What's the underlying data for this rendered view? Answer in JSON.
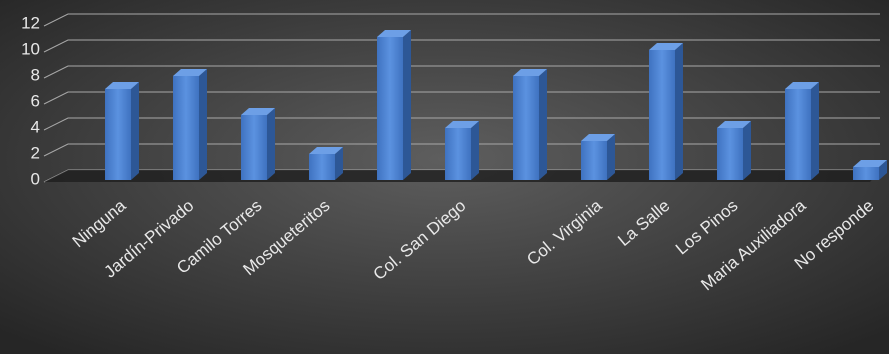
{
  "chart_data": {
    "type": "bar",
    "categories": [
      "Ninguna",
      "Jardín-Privado",
      "Camilo Torres",
      "Mosqueteritos",
      null,
      "Col. San Diego",
      null,
      "Col. Virginia",
      "La Salle",
      "Los Pinos",
      "Maria Auxiliadora",
      "No responde"
    ],
    "values": [
      7,
      8,
      5,
      2,
      11,
      4,
      8,
      3,
      10,
      4,
      7,
      1
    ],
    "color": "#4a7fcf",
    "ylim": [
      0,
      12
    ],
    "yticks": [
      0,
      2,
      4,
      6,
      8,
      10,
      12
    ],
    "grid": true
  }
}
